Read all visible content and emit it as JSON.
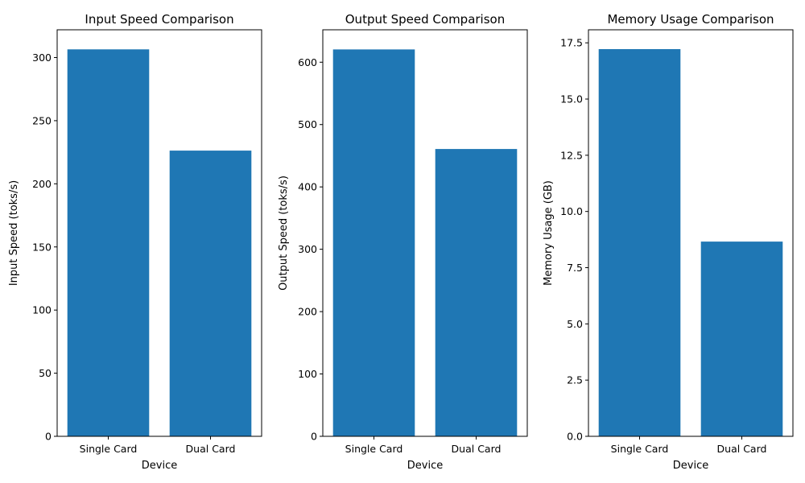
{
  "chart_data": [
    {
      "type": "bar",
      "title": "Input Speed Comparison",
      "xlabel": "Device",
      "ylabel": "Input Speed (toks/s)",
      "categories": [
        "Single Card",
        "Dual Card"
      ],
      "values": [
        306.5,
        226.3
      ],
      "ylim": [
        0,
        322
      ],
      "yticks": [
        0,
        50,
        100,
        150,
        200,
        250,
        300
      ],
      "ytick_labels": [
        "0",
        "50",
        "100",
        "150",
        "200",
        "250",
        "300"
      ],
      "bar_color": "#1f77b4",
      "grid": false
    },
    {
      "type": "bar",
      "title": "Output Speed Comparison",
      "xlabel": "Device",
      "ylabel": "Output Speed (toks/s)",
      "categories": [
        "Single Card",
        "Dual Card"
      ],
      "values": [
        620.5,
        460.8
      ],
      "ylim": [
        0,
        652
      ],
      "yticks": [
        0,
        100,
        200,
        300,
        400,
        500,
        600
      ],
      "ytick_labels": [
        "0",
        "100",
        "200",
        "300",
        "400",
        "500",
        "600"
      ],
      "bar_color": "#1f77b4",
      "grid": false
    },
    {
      "type": "bar",
      "title": "Memory Usage Comparison",
      "xlabel": "Device",
      "ylabel": "Memory Usage (GB)",
      "categories": [
        "Single Card",
        "Dual Card"
      ],
      "values": [
        17.22,
        8.66
      ],
      "ylim": [
        0,
        18.08
      ],
      "yticks": [
        0,
        2.5,
        5,
        7.5,
        10,
        12.5,
        15,
        17.5
      ],
      "ytick_labels": [
        "0.0",
        "2.5",
        "5.0",
        "7.5",
        "10.0",
        "12.5",
        "15.0",
        "17.5"
      ],
      "bar_color": "#1f77b4",
      "grid": false
    }
  ]
}
